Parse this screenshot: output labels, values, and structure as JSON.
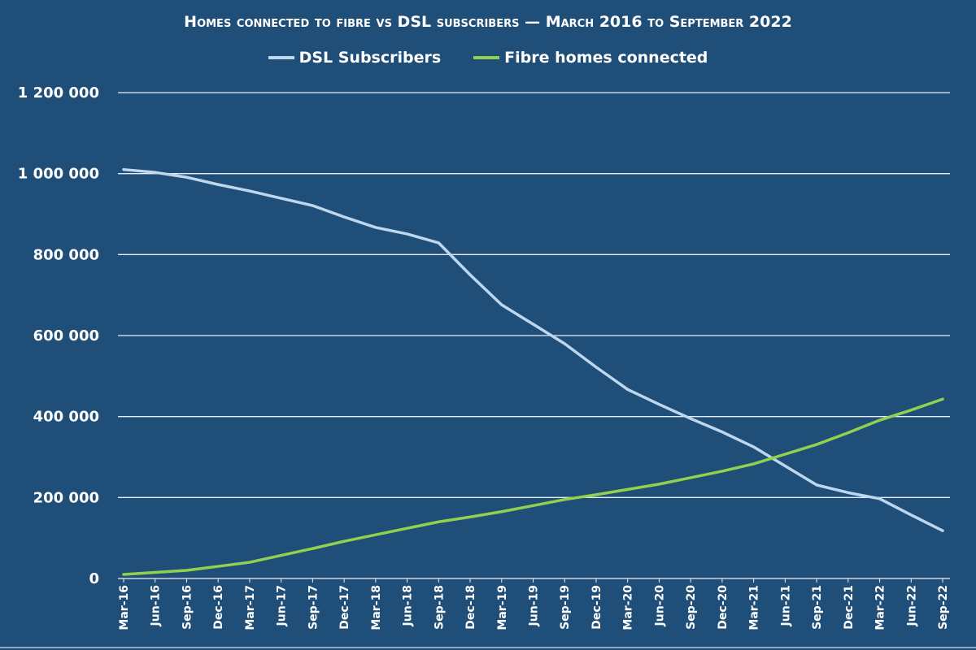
{
  "chart_data": {
    "type": "line",
    "title": "Homes connected to fibre vs DSL subscribers — March 2016 to September 2022",
    "xlabel": "",
    "ylabel": "",
    "ylim": [
      0,
      1200000
    ],
    "yticks": [
      0,
      200000,
      400000,
      600000,
      800000,
      1000000,
      1200000
    ],
    "ytick_labels": [
      "0",
      "200 000",
      "400 000",
      "600 000",
      "800 000",
      "1 000 000",
      "1 200 000"
    ],
    "grid": true,
    "legend_position": "top-center",
    "categories": [
      "Mar-16",
      "Jun-16",
      "Sep-16",
      "Dec-16",
      "Mar-17",
      "Jun-17",
      "Sep-17",
      "Dec-17",
      "Mar-18",
      "Jun-18",
      "Sep-18",
      "Dec-18",
      "Mar-19",
      "Jun-19",
      "Sep-19",
      "Dec-19",
      "Mar-20",
      "Jun-20",
      "Sep-20",
      "Dec-20",
      "Mar-21",
      "Jun-21",
      "Sep-21",
      "Dec-21",
      "Mar-22",
      "Jun-22",
      "Sep-22"
    ],
    "series": [
      {
        "name": "DSL Subscribers",
        "color": "#bdd7ee",
        "values": [
          1010000,
          1003000,
          991000,
          973000,
          957000,
          939000,
          921000,
          893000,
          867000,
          851000,
          829000,
          750000,
          676000,
          628000,
          580000,
          522000,
          467000,
          430000,
          395000,
          362000,
          325000,
          278000,
          231000,
          212000,
          197000,
          157000,
          118000
        ]
      },
      {
        "name": "Fibre homes connected",
        "color": "#92d050",
        "values": [
          10000,
          15000,
          20000,
          30000,
          40000,
          57000,
          74000,
          92000,
          108000,
          124000,
          140000,
          152000,
          165000,
          180000,
          195000,
          207000,
          220000,
          233000,
          249000,
          265000,
          283000,
          307000,
          331000,
          360000,
          391000,
          416000,
          443000
        ]
      }
    ]
  }
}
